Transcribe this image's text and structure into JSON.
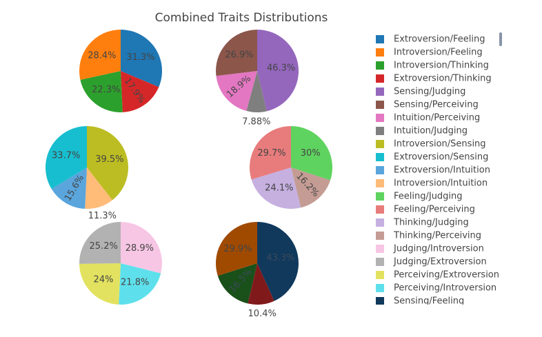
{
  "chart_data": {
    "title": "Combined Traits Distributions",
    "type": "pie",
    "charts": [
      {
        "slices": [
          {
            "label": "Extroversion/Feeling",
            "value": 31.3,
            "text": "31.3%",
            "color": "#1f77b4"
          },
          {
            "label": "Extroversion/Thinking",
            "value": 17.9,
            "text": "17.9%",
            "color": "#d62728"
          },
          {
            "label": "Introversion/Thinking",
            "value": 22.3,
            "text": "22.3%",
            "color": "#2ca02c"
          },
          {
            "label": "Introversion/Feeling",
            "value": 28.4,
            "text": "28.4%",
            "color": "#ff7f0e"
          }
        ]
      },
      {
        "slices": [
          {
            "label": "Sensing/Judging",
            "value": 46.3,
            "text": "46.3%",
            "color": "#9467bd"
          },
          {
            "label": "Intuition/Judging",
            "value": 7.88,
            "text": "7.88%",
            "color": "#7f7f7f"
          },
          {
            "label": "Intuition/Perceiving",
            "value": 18.9,
            "text": "18.9%",
            "color": "#e377c2"
          },
          {
            "label": "Sensing/Perceiving",
            "value": 26.9,
            "text": "26.9%",
            "color": "#8c564b"
          }
        ]
      },
      {
        "slices": [
          {
            "label": "Introversion/Sensing",
            "value": 39.5,
            "text": "39.5%",
            "color": "#bcbd22"
          },
          {
            "label": "Introversion/Intuition",
            "value": 11.3,
            "text": "11.3%",
            "color": "#ffbb78"
          },
          {
            "label": "Extroversion/Intuition",
            "value": 15.6,
            "text": "15.6%",
            "color": "#5aa5dc"
          },
          {
            "label": "Extroversion/Sensing",
            "value": 33.7,
            "text": "33.7%",
            "color": "#17becf"
          }
        ]
      },
      {
        "slices": [
          {
            "label": "Feeling/Judging",
            "value": 30,
            "text": "30%",
            "color": "#5fd35f"
          },
          {
            "label": "Thinking/Perceiving",
            "value": 16.2,
            "text": "16.2%",
            "color": "#c49c94"
          },
          {
            "label": "Thinking/Judging",
            "value": 24.1,
            "text": "24.1%",
            "color": "#c5b0e0"
          },
          {
            "label": "Feeling/Perceiving",
            "value": 29.7,
            "text": "29.7%",
            "color": "#e87c7c"
          }
        ]
      },
      {
        "slices": [
          {
            "label": "Judging/Introversion",
            "value": 28.9,
            "text": "28.9%",
            "color": "#f7c6e4"
          },
          {
            "label": "Perceiving/Introversion",
            "value": 21.8,
            "text": "21.8%",
            "color": "#5ee0ec"
          },
          {
            "label": "Perceiving/Extroversion",
            "value": 24,
            "text": "24%",
            "color": "#e2e260"
          },
          {
            "label": "Judging/Extroversion",
            "value": 25.2,
            "text": "25.2%",
            "color": "#b2b2b2"
          }
        ]
      },
      {
        "slices": [
          {
            "label": "Sensing/Feeling",
            "value": 43.3,
            "text": "43.3%",
            "color": "#10395c"
          },
          {
            "label": "Intuition/Feeling",
            "value": 10.4,
            "text": "10.4%",
            "color": "#801a1a"
          },
          {
            "label": "Intuition/Thinking",
            "value": 16.5,
            "text": "16.5%",
            "color": "#1a501a"
          },
          {
            "label": "Sensing/Thinking",
            "value": 29.9,
            "text": "29.9%",
            "color": "#a04a00"
          }
        ]
      }
    ],
    "legend": {
      "placement": "right",
      "items": [
        {
          "label": "Extroversion/Feeling",
          "color": "#1f77b4"
        },
        {
          "label": "Introversion/Feeling",
          "color": "#ff7f0e"
        },
        {
          "label": "Introversion/Thinking",
          "color": "#2ca02c"
        },
        {
          "label": "Extroversion/Thinking",
          "color": "#d62728"
        },
        {
          "label": "Sensing/Judging",
          "color": "#9467bd"
        },
        {
          "label": "Sensing/Perceiving",
          "color": "#8c564b"
        },
        {
          "label": "Intuition/Perceiving",
          "color": "#e377c2"
        },
        {
          "label": "Intuition/Judging",
          "color": "#7f7f7f"
        },
        {
          "label": "Introversion/Sensing",
          "color": "#bcbd22"
        },
        {
          "label": "Extroversion/Sensing",
          "color": "#17becf"
        },
        {
          "label": "Extroversion/Intuition",
          "color": "#5aa5dc"
        },
        {
          "label": "Introversion/Intuition",
          "color": "#ffbb78"
        },
        {
          "label": "Feeling/Judging",
          "color": "#5fd35f"
        },
        {
          "label": "Feeling/Perceiving",
          "color": "#e87c7c"
        },
        {
          "label": "Thinking/Judging",
          "color": "#c5b0e0"
        },
        {
          "label": "Thinking/Perceiving",
          "color": "#c49c94"
        },
        {
          "label": "Judging/Introversion",
          "color": "#f7c6e4"
        },
        {
          "label": "Judging/Extroversion",
          "color": "#b2b2b2"
        },
        {
          "label": "Perceiving/Extroversion",
          "color": "#e2e260"
        },
        {
          "label": "Perceiving/Introversion",
          "color": "#5ee0ec"
        },
        {
          "label": "Sensing/Feeling",
          "color": "#10395c"
        }
      ]
    }
  }
}
